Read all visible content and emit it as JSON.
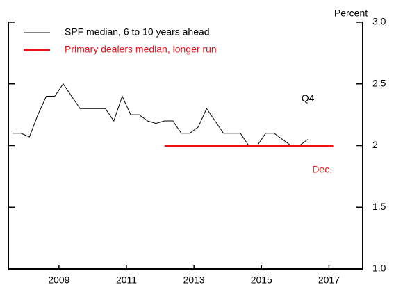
{
  "chart_data": {
    "type": "line",
    "y_axis_label": "Percent",
    "x": [
      2008.125,
      2008.375,
      2008.625,
      2008.875,
      2009.125,
      2009.375,
      2009.625,
      2009.875,
      2010.125,
      2010.375,
      2010.625,
      2010.875,
      2011.125,
      2011.375,
      2011.625,
      2011.875,
      2012.125,
      2012.375,
      2012.625,
      2012.875,
      2013.125,
      2013.375,
      2013.625,
      2013.875,
      2014.125,
      2014.375,
      2014.625,
      2014.875,
      2015.125,
      2015.375,
      2015.625,
      2015.875,
      2016.125,
      2016.375,
      2016.625,
      2016.875
    ],
    "series": [
      {
        "name": "SPF median, 6 to 10 years ahead",
        "color": "#000000",
        "values": [
          2.1,
          2.1,
          2.07,
          2.25,
          2.4,
          2.4,
          2.5,
          2.4,
          2.3,
          2.3,
          2.3,
          2.3,
          2.2,
          2.4,
          2.25,
          2.25,
          2.2,
          2.18,
          2.2,
          2.2,
          2.1,
          2.1,
          2.15,
          2.3,
          2.2,
          2.1,
          2.1,
          2.1,
          2.0,
          2.0,
          2.1,
          2.1,
          2.05,
          2.0,
          2.0,
          2.05
        ]
      },
      {
        "name": "Primary dealers median, longer run",
        "color": "#e8141b",
        "x": [
          2012.625,
          2017.625
        ],
        "values": [
          2.0,
          2.0
        ]
      }
    ],
    "annotations": [
      {
        "text": "Q4",
        "x": 2016.875,
        "y": 2.38,
        "color": "#000000"
      },
      {
        "text": "Dec.",
        "x": 2017.3,
        "y": 1.8,
        "color": "#e8141b"
      }
    ],
    "xlim": [
      2008,
      2018.5
    ],
    "xticks": [
      {
        "value": 2009.5,
        "label": "2009"
      },
      {
        "value": 2011.5,
        "label": "2011"
      },
      {
        "value": 2013.5,
        "label": "2013"
      },
      {
        "value": 2015.5,
        "label": "2015"
      },
      {
        "value": 2017.5,
        "label": "2017"
      }
    ],
    "ylim": [
      1.0,
      3.0
    ],
    "yticks": [
      {
        "value": 1.0,
        "label": "1.0"
      },
      1.5,
      2.0,
      2.5,
      {
        "value": 3.0,
        "label": "3.0"
      }
    ],
    "legend": "upper left"
  }
}
